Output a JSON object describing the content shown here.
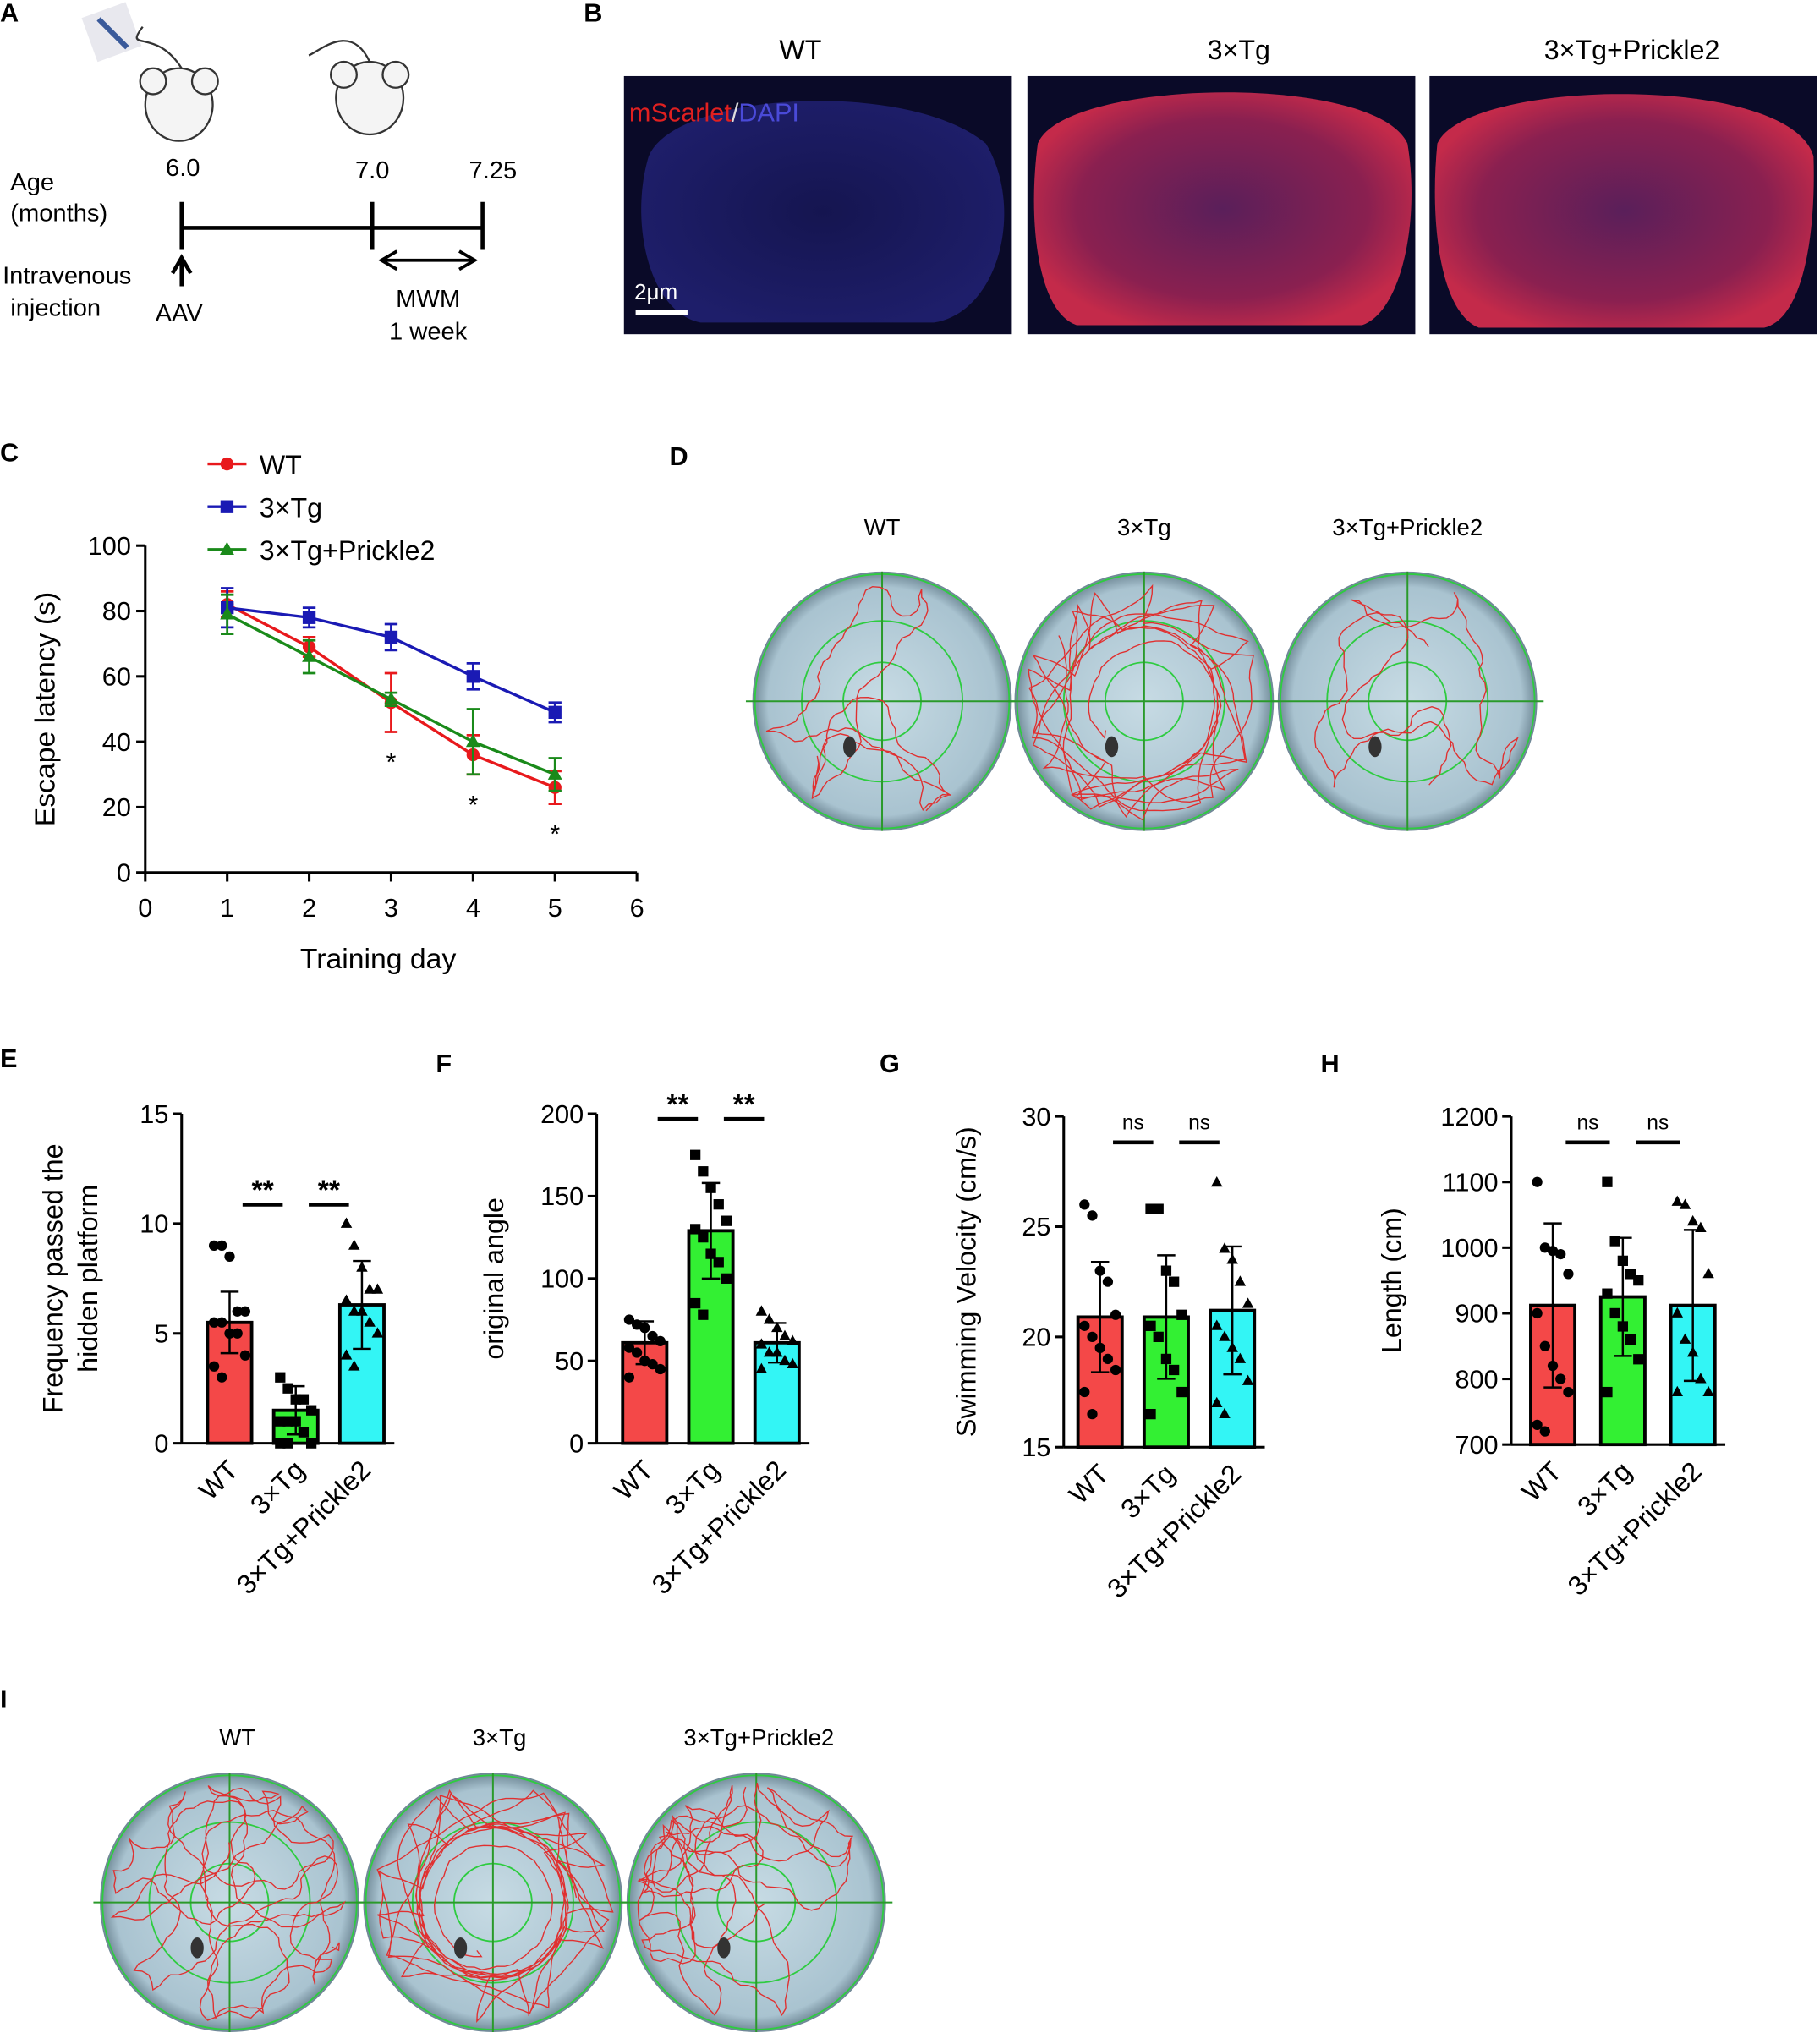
{
  "panel_labels": [
    "A",
    "B",
    "C",
    "D",
    "E",
    "F",
    "G",
    "H",
    "I"
  ],
  "timeline": {
    "age_label": "Age",
    "age_unit": "(months)",
    "ticks": [
      "6.0",
      "7.0",
      "7.25"
    ],
    "injection_label": [
      "Intravenous",
      "injection"
    ],
    "injection_agent": "AAV",
    "test_label": "MWM",
    "test_duration": "1 week"
  },
  "histology": {
    "groups": [
      "WT",
      "3×Tg",
      "3×Tg+Prickle2"
    ],
    "stain_red": "mScarlet",
    "separator": "/",
    "stain_blue": "DAPI",
    "scale_bar": "2μm"
  },
  "maze_D": {
    "groups": [
      "WT",
      "3×Tg",
      "3×Tg+Prickle2"
    ]
  },
  "maze_I": {
    "groups": [
      "WT",
      "3×Tg",
      "3×Tg+Prickle2"
    ]
  },
  "chart_data": [
    {
      "type": "line",
      "x": [
        1,
        2,
        3,
        4,
        5
      ],
      "xlabel": "Training day",
      "ylabel": "Escape latency (s)",
      "xlim": [
        0,
        6
      ],
      "xticks": [
        0,
        1,
        2,
        3,
        4,
        5,
        6
      ],
      "ylim": [
        0,
        100
      ],
      "yticks": [
        0,
        20,
        40,
        60,
        80,
        100
      ],
      "series": [
        {
          "name": "WT",
          "color": "#e8191c",
          "marker": "circle",
          "values": [
            82,
            69,
            52,
            36,
            26
          ],
          "errors": [
            4,
            3,
            9,
            6,
            5
          ]
        },
        {
          "name": "3×Tg",
          "color": "#1a1ab4",
          "marker": "square",
          "values": [
            81,
            78,
            72,
            60,
            49
          ],
          "errors": [
            6,
            3,
            4,
            4,
            3
          ]
        },
        {
          "name": "3×Tg+Prickle2",
          "color": "#1a8a1a",
          "marker": "triangle",
          "values": [
            79,
            66,
            53,
            40,
            30
          ],
          "errors": [
            6,
            5,
            2,
            10,
            5
          ]
        }
      ],
      "annotations": [
        "*",
        "*",
        "*"
      ]
    },
    {
      "type": "bar",
      "categories": [
        "WT",
        "3×Tg",
        "3×Tg+Prickle2"
      ],
      "ylabel": [
        "Frequency passed the",
        "hidden platform"
      ],
      "values": [
        5.5,
        1.5,
        6.3
      ],
      "errors": [
        1.4,
        1.1,
        2.0
      ],
      "colors": [
        "#f44848",
        "#33f033",
        "#33f5f5"
      ],
      "markers": [
        "circle",
        "square",
        "triangle"
      ],
      "points": [
        [
          9,
          9,
          8.5,
          6,
          6,
          5.5,
          5.5,
          5,
          5,
          4,
          3.5,
          3
        ],
        [
          3,
          2.5,
          2,
          2,
          1.5,
          1,
          1,
          1,
          0.5,
          0,
          0,
          0
        ],
        [
          10,
          9,
          8,
          7,
          7,
          6.5,
          6,
          6,
          5.5,
          5,
          4,
          3.5
        ]
      ],
      "ylim": [
        0,
        15
      ],
      "yticks": [
        0,
        5,
        10,
        15
      ],
      "annotations": [
        "**",
        "**"
      ]
    },
    {
      "type": "bar",
      "categories": [
        "WT",
        "3×Tg",
        "3×Tg+Prickle2"
      ],
      "ylabel": [
        "original angle"
      ],
      "values": [
        61,
        129,
        61
      ],
      "errors": [
        13,
        29,
        12
      ],
      "colors": [
        "#f44848",
        "#33f033",
        "#33f5f5"
      ],
      "markers": [
        "circle",
        "square",
        "triangle"
      ],
      "points": [
        [
          75,
          72,
          70,
          65,
          62,
          58,
          55,
          50,
          48,
          45,
          40
        ],
        [
          175,
          165,
          155,
          145,
          135,
          130,
          125,
          115,
          110,
          100,
          85,
          78
        ],
        [
          80,
          75,
          70,
          65,
          62,
          60,
          55,
          55,
          50,
          48,
          45
        ]
      ],
      "ylim": [
        0,
        200
      ],
      "yticks": [
        0,
        50,
        100,
        150,
        200
      ],
      "annotations": [
        "**",
        "**"
      ]
    },
    {
      "type": "bar",
      "categories": [
        "WT",
        "3×Tg",
        "3×Tg+Prickle2"
      ],
      "ylabel": [
        "Swimming Velocity (cm/s)"
      ],
      "values": [
        20.9,
        20.9,
        21.2
      ],
      "errors": [
        2.5,
        2.8,
        2.9
      ],
      "colors": [
        "#f44848",
        "#33f033",
        "#33f5f5"
      ],
      "markers": [
        "circle",
        "square",
        "triangle"
      ],
      "points": [
        [
          26,
          25.5,
          23,
          22.5,
          21,
          20.5,
          20,
          19.5,
          19,
          18.5,
          17.5,
          16.5
        ],
        [
          25.8,
          25.8,
          23,
          22.5,
          21,
          20.5,
          20,
          19,
          18.5,
          17.5,
          16.5
        ],
        [
          27,
          24,
          23.5,
          22.5,
          21.5,
          20.5,
          20,
          19.5,
          19,
          18,
          17,
          16.5
        ]
      ],
      "ylim": [
        15,
        30
      ],
      "yticks": [
        15,
        20,
        25,
        30
      ],
      "annotations": [
        "ns",
        "ns"
      ]
    },
    {
      "type": "bar",
      "categories": [
        "WT",
        "3×Tg",
        "3×Tg+Prickle2"
      ],
      "ylabel": [
        "Length (cm)"
      ],
      "values": [
        912,
        925,
        912
      ],
      "errors": [
        125,
        90,
        115
      ],
      "colors": [
        "#f44848",
        "#33f033",
        "#33f5f5"
      ],
      "markers": [
        "circle",
        "square",
        "triangle"
      ],
      "points": [
        [
          1100,
          1000,
          995,
          990,
          960,
          900,
          850,
          820,
          800,
          780,
          730,
          720
        ],
        [
          1100,
          1010,
          980,
          960,
          950,
          930,
          900,
          880,
          860,
          830,
          780
        ],
        [
          1070,
          1065,
          1040,
          1030,
          960,
          900,
          860,
          840,
          800,
          780,
          780
        ]
      ],
      "ylim": [
        700,
        1200
      ],
      "yticks": [
        700,
        800,
        900,
        1000,
        1100,
        1200
      ],
      "annotations": [
        "ns",
        "ns"
      ]
    }
  ]
}
